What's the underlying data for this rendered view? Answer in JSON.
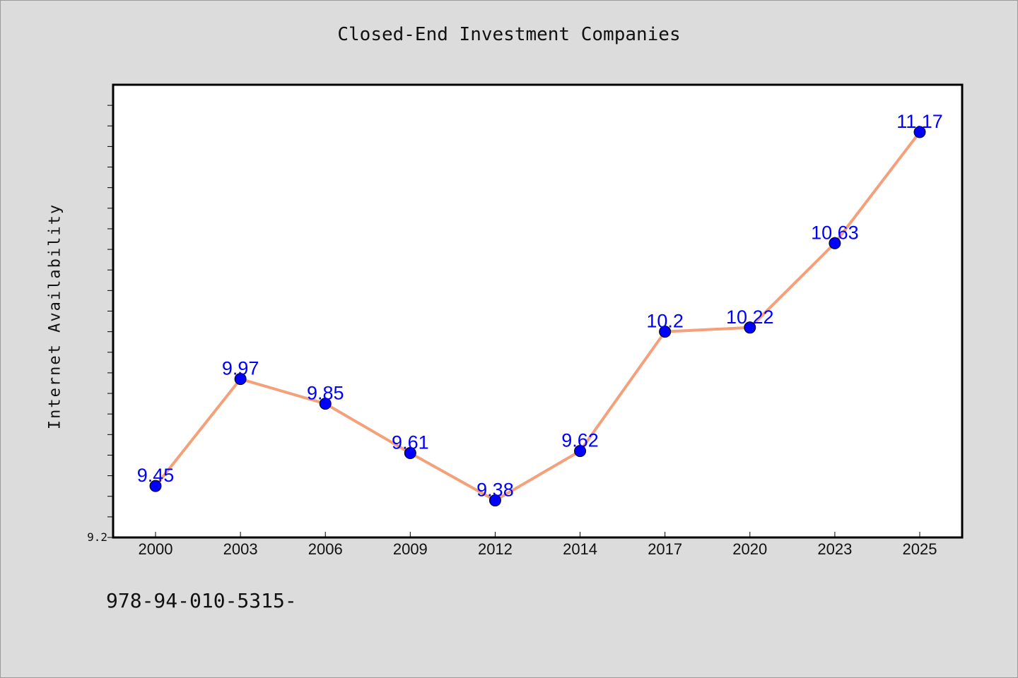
{
  "chart_data": {
    "type": "line",
    "title": "Closed-End Investment Companies",
    "ylabel": "Internet Availability",
    "xlabel": "",
    "x": [
      "2000",
      "2003",
      "2006",
      "2009",
      "2012",
      "2014",
      "2017",
      "2020",
      "2023",
      "2025"
    ],
    "series": [
      {
        "values": [
          9.45,
          9.97,
          9.85,
          9.61,
          9.38,
          9.62,
          10.2,
          10.22,
          10.63,
          11.17
        ],
        "labels": [
          "9.45",
          "9.97",
          "9.85",
          "9.61",
          "9.38",
          "9.62",
          "10.2",
          "10.22",
          "10.63",
          "11.17"
        ]
      }
    ],
    "ylim": [
      9.2,
      11.4
    ],
    "y_tick_labels": [
      "9.2"
    ],
    "grid": false,
    "colors": {
      "line": "#f4a07a",
      "marker": "#0000ff",
      "marker_edge": "#000000",
      "label": "#0000ff",
      "background": "#dcdcdc",
      "plot_bg": "#ffffff"
    }
  },
  "footer": {
    "code": "978-94-010-5315-"
  }
}
